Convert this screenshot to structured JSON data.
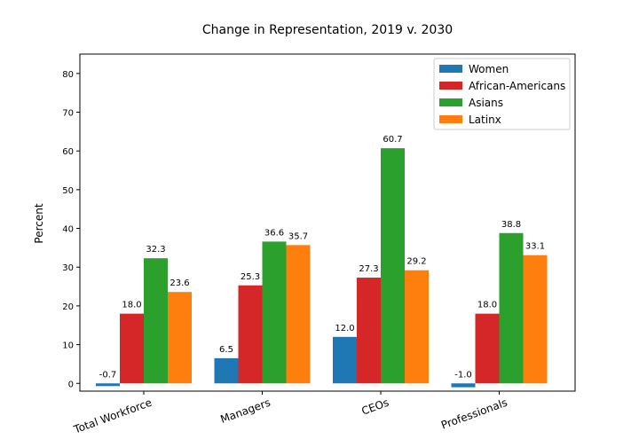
{
  "chart_data": {
    "type": "bar",
    "title": "Change in Representation, 2019 v. 2030",
    "xlabel": "",
    "ylabel": "Percent",
    "categories": [
      "Total Workforce",
      "Managers",
      "CEOs",
      "Professionals"
    ],
    "series": [
      {
        "name": "Women",
        "color": "#1f77b4",
        "values": [
          -0.7,
          6.5,
          12.0,
          -1.0
        ]
      },
      {
        "name": "African-Americans",
        "color": "#d62728",
        "values": [
          18.0,
          25.3,
          27.3,
          18.0
        ]
      },
      {
        "name": "Asians",
        "color": "#2ca02c",
        "values": [
          32.3,
          36.6,
          60.7,
          38.8
        ]
      },
      {
        "name": "Latinx",
        "color": "#ff7f0e",
        "values": [
          23.6,
          35.7,
          29.2,
          33.1
        ]
      }
    ],
    "yticks": [
      0,
      10,
      20,
      30,
      40,
      50,
      60,
      70,
      80
    ],
    "ylim": [
      -2,
      85
    ],
    "grid": false,
    "legend_position": "top-right",
    "xtick_rotation": "slanted"
  }
}
